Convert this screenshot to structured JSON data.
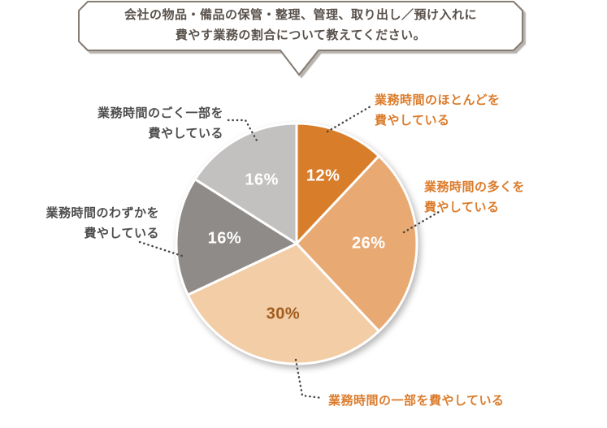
{
  "bubble": {
    "line1": "会社の物品・備品の保管・整理、管理、取り出し／預け入れに",
    "line2": "費やす業務の割合について教えてください。"
  },
  "chart_data": {
    "type": "pie",
    "title": "会社の物品・備品の保管・整理、管理、取り出し／預け入れに費やす業務の割合について教えてください。",
    "labels": [
      "業務時間のほとんどを費やしている",
      "業務時間の多くを費やしている",
      "業務時間の一部を費やしている",
      "業務時間のわずかを費やしている",
      "業務時間のごく一部を費やしている"
    ],
    "values": [
      12,
      26,
      30,
      16,
      16
    ],
    "pct_labels": [
      "12%",
      "26%",
      "30%",
      "16%",
      "16%"
    ],
    "colors": [
      "#D87E2B",
      "#E9A972",
      "#F2CDA6",
      "#8F8B88",
      "#C3C1C0"
    ],
    "pct_label_colors": [
      "#FFFFFF",
      "#FFFFFF",
      "#A05C1E",
      "#FFFFFF",
      "#FFFFFF"
    ],
    "start_angle_deg": 0,
    "direction": "clockwise",
    "legend_position": "callout-labels",
    "unit": "%"
  },
  "callouts": [
    {
      "lines": [
        "業務時間のほとんどを",
        "費やしている"
      ],
      "color": "#DB7C2C"
    },
    {
      "lines": [
        "業務時間の多くを",
        "費やしている"
      ],
      "color": "#DB7C2C"
    },
    {
      "lines": [
        "業務時間の一部を費やしている"
      ],
      "color": "#DB7C2C"
    },
    {
      "lines": [
        "業務時間のわずかを",
        "費やしている"
      ],
      "color": "#4D4D4D"
    },
    {
      "lines": [
        "業務時間のごく一部を",
        "費やしている"
      ],
      "color": "#4D4D4D"
    }
  ]
}
